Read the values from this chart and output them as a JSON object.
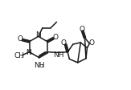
{
  "bg_color": "#ffffff",
  "line_color": "#1a1a1a",
  "lw": 1.1,
  "fs": 6.5,
  "xlim": [
    0.0,
    11.0
  ],
  "ylim": [
    1.0,
    8.5
  ]
}
